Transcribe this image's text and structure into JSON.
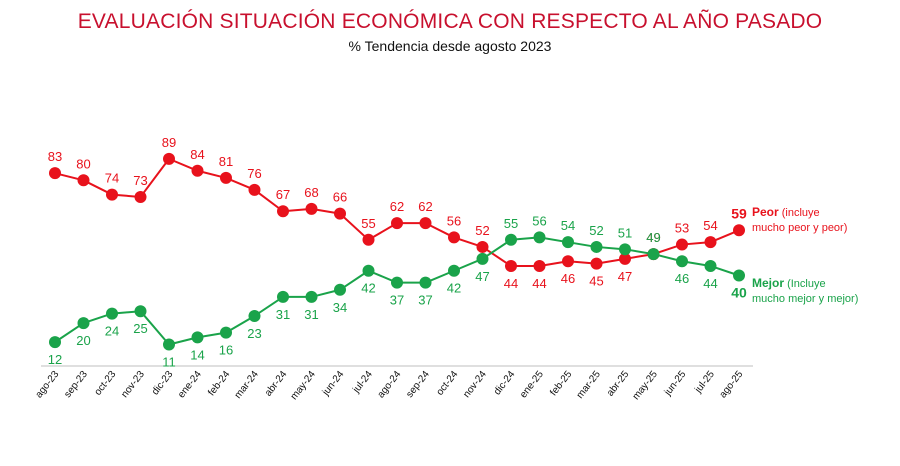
{
  "chart_data": {
    "type": "line",
    "title": "EVALUACIÓN SITUACIÓN ECONÓMICA CON RESPECTO AL AÑO PASADO",
    "subtitle": "% Tendencia desde agosto 2023",
    "categories": [
      "ago-23",
      "sep-23",
      "oct-23",
      "nov-23",
      "dic-23",
      "ene-24",
      "feb-24",
      "mar-24",
      "abr-24",
      "may-24",
      "jun-24",
      "jul-24",
      "ago-24",
      "sep-24",
      "oct-24",
      "nov-24",
      "dic-24",
      "ene-25",
      "feb-25",
      "mar-25",
      "abr-25",
      "may-25",
      "jun-25",
      "jul-25",
      "ago-25"
    ],
    "series": [
      {
        "name": "Peor",
        "legend_detail": "(incluye mucho peor y peor)",
        "color": "#e8121c",
        "values": [
          83,
          80,
          74,
          73,
          89,
          84,
          81,
          76,
          67,
          68,
          66,
          55,
          62,
          62,
          56,
          52,
          44,
          44,
          46,
          45,
          47,
          49,
          53,
          54,
          59
        ]
      },
      {
        "name": "Mejor",
        "legend_detail": "(Incluye mucho mejor y mejor)",
        "color": "#1aa34a",
        "values": [
          12,
          20,
          24,
          25,
          11,
          14,
          16,
          23,
          31,
          31,
          34,
          42,
          37,
          37,
          42,
          47,
          55,
          56,
          54,
          52,
          51,
          49,
          46,
          44,
          40
        ]
      }
    ],
    "ylim": [
      0,
      100
    ],
    "grid": false,
    "legend": "right, next to last points"
  },
  "legend": {
    "peor_label": "Peor",
    "peor_detail_1": "(incluye",
    "peor_detail_2": "mucho peor y peor)",
    "mejor_label": "Mejor",
    "mejor_detail_1": "(Incluye",
    "mejor_detail_2": "mucho mejor y mejor)"
  }
}
